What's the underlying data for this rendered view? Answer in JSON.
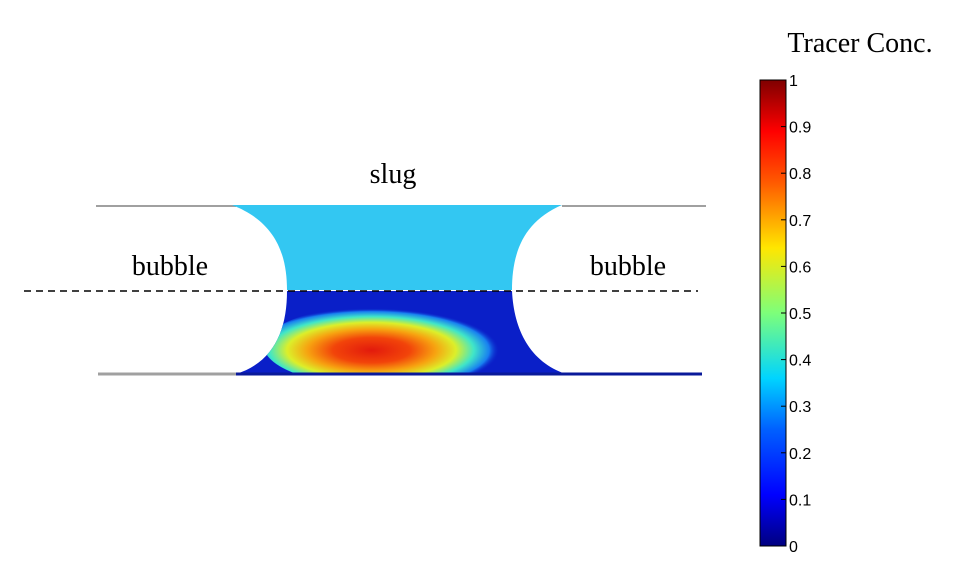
{
  "labels": {
    "slug": "slug",
    "bubble_left": "bubble",
    "bubble_right": "bubble"
  },
  "colorbar": {
    "title": "Tracer Conc.",
    "min": 0,
    "max": 1,
    "ticks": [
      "0",
      "0.1",
      "0.2",
      "0.3",
      "0.4",
      "0.5",
      "0.6",
      "0.7",
      "0.8",
      "0.9",
      "1"
    ],
    "colormap": "jet"
  },
  "colors": {
    "upper_half": "#33c7f2",
    "lower_background": "#0a1fc8",
    "hotspot_peak": "#e81408",
    "wall_line": "#a0a0a0",
    "bottom_wall": "#0a1a9a",
    "centerline": "#000000"
  }
}
